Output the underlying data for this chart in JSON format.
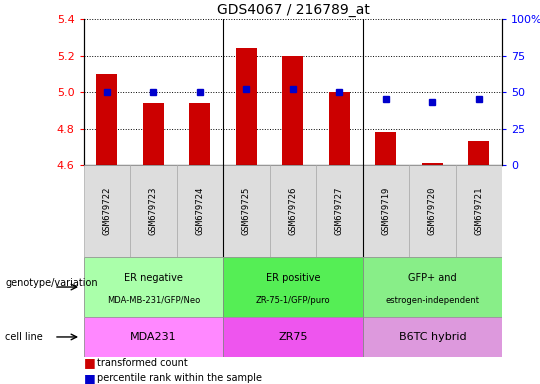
{
  "title": "GDS4067 / 216789_at",
  "samples": [
    "GSM679722",
    "GSM679723",
    "GSM679724",
    "GSM679725",
    "GSM679726",
    "GSM679727",
    "GSM679719",
    "GSM679720",
    "GSM679721"
  ],
  "bar_values": [
    5.1,
    4.94,
    4.94,
    5.24,
    5.2,
    5.0,
    4.78,
    4.61,
    4.73
  ],
  "percentile_values": [
    50,
    50,
    50,
    52,
    52,
    50,
    45,
    43,
    45
  ],
  "bar_bottom": 4.6,
  "ylim_left": [
    4.6,
    5.4
  ],
  "ylim_right": [
    0,
    100
  ],
  "yticks_left": [
    4.6,
    4.8,
    5.0,
    5.2,
    5.4
  ],
  "yticks_right": [
    0,
    25,
    50,
    75,
    100
  ],
  "ytick_right_labels": [
    "0",
    "25",
    "50",
    "75",
    "100%"
  ],
  "bar_color": "#cc0000",
  "dot_color": "#0000cc",
  "groups": [
    {
      "label_top": "ER negative",
      "label_bot": "MDA-MB-231/GFP/Neo",
      "cell_line": "MDA231",
      "start": 0,
      "end": 3,
      "geno_color": "#aaffaa",
      "cell_color": "#ff88ff"
    },
    {
      "label_top": "ER positive",
      "label_bot": "ZR-75-1/GFP/puro",
      "cell_line": "ZR75",
      "start": 3,
      "end": 6,
      "geno_color": "#55ee55",
      "cell_color": "#ee55ee"
    },
    {
      "label_top": "GFP+ and",
      "label_bot": "estrogen-independent",
      "cell_line": "B6TC hybrid",
      "start": 6,
      "end": 9,
      "geno_color": "#88ee88",
      "cell_color": "#dd99dd"
    }
  ],
  "legend_bar_label": "transformed count",
  "legend_dot_label": "percentile rank within the sample",
  "genotype_row_label": "genotype/variation",
  "cell_line_row_label": "cell line",
  "bar_width": 0.45,
  "grid_color": "black",
  "sample_col_color": "#dddddd",
  "sample_sep_color": "#aaaaaa"
}
